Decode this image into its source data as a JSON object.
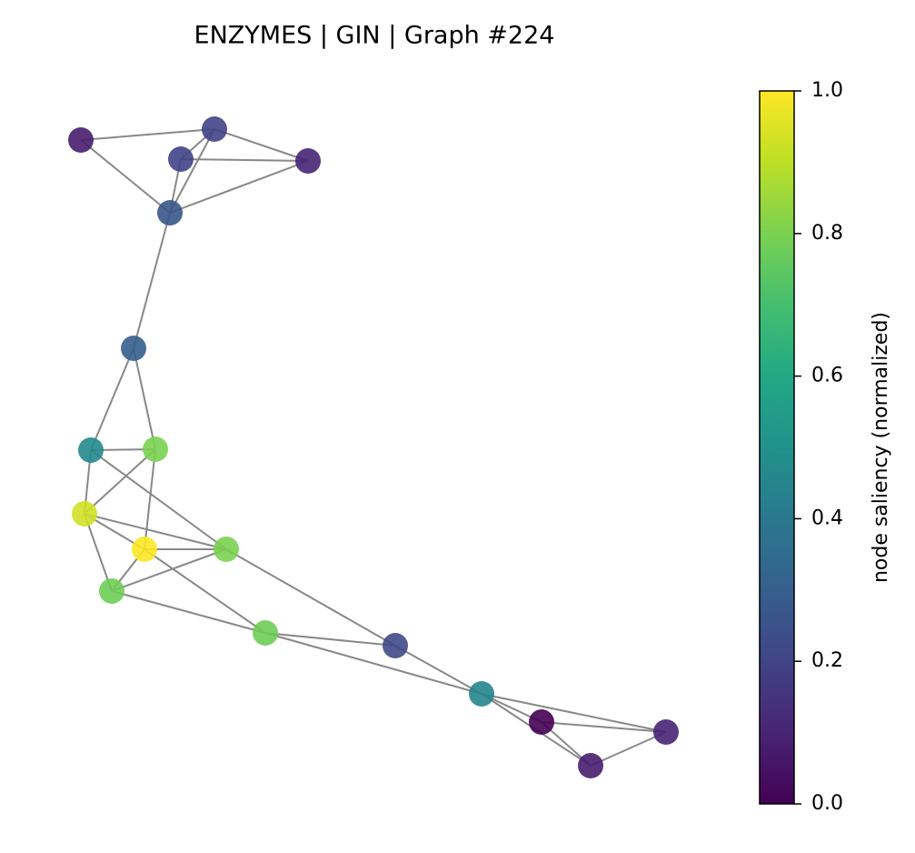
{
  "chart_data": {
    "type": "network",
    "title": "ENZYMES | GIN | Graph #224",
    "cmap": "viridis",
    "values": [
      0.08,
      0.2,
      0.2,
      0.1,
      0.27,
      0.3,
      0.47,
      0.8,
      0.93,
      1.0,
      0.8,
      0.78,
      0.78,
      0.22,
      0.45,
      0.0,
      0.1,
      0.08
    ],
    "edges": [
      [
        0,
        1
      ],
      [
        0,
        4
      ],
      [
        1,
        2
      ],
      [
        1,
        3
      ],
      [
        1,
        4
      ],
      [
        2,
        3
      ],
      [
        2,
        4
      ],
      [
        3,
        4
      ],
      [
        4,
        5
      ],
      [
        5,
        6
      ],
      [
        5,
        7
      ],
      [
        6,
        7
      ],
      [
        6,
        8
      ],
      [
        6,
        10
      ],
      [
        7,
        8
      ],
      [
        7,
        9
      ],
      [
        8,
        9
      ],
      [
        8,
        10
      ],
      [
        8,
        11
      ],
      [
        9,
        10
      ],
      [
        9,
        11
      ],
      [
        9,
        12
      ],
      [
        10,
        11
      ],
      [
        10,
        13
      ],
      [
        11,
        12
      ],
      [
        12,
        13
      ],
      [
        12,
        14
      ],
      [
        13,
        14
      ],
      [
        14,
        15
      ],
      [
        14,
        16
      ],
      [
        14,
        17
      ],
      [
        15,
        16
      ],
      [
        15,
        17
      ],
      [
        16,
        17
      ]
    ],
    "colorbar_label": "node saliency (normalized)",
    "zlim": [
      0,
      1
    ],
    "zticks": [
      {
        "value": 0,
        "label": "0.0"
      },
      {
        "value": 0.2,
        "label": "0.2"
      },
      {
        "value": 0.4,
        "label": "0.4"
      },
      {
        "value": 0.6,
        "label": "0.6"
      },
      {
        "value": 0.8,
        "label": "0.8"
      },
      {
        "value": 1,
        "label": "1.0"
      }
    ]
  }
}
